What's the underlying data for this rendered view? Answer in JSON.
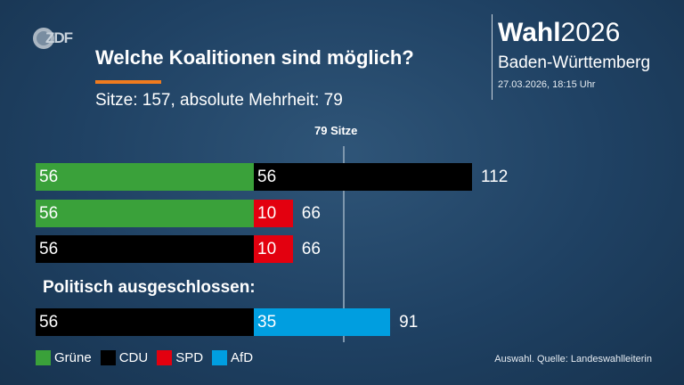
{
  "header": {
    "title": "Welche Koalitionen sind möglich?",
    "subtitle": "Sitze: 157, absolute Mehrheit: 79",
    "brand_bold": "Wahl",
    "brand_year": "2026",
    "region": "Baden-Württemberg",
    "timestamp": "27.03.2026, 18:15 Uhr",
    "logo_text": "ZDF",
    "accent_color": "#f07b1e"
  },
  "chart_data": {
    "type": "bar",
    "orientation": "horizontal",
    "stacked": true,
    "majority_label": "79 Sitze",
    "majority_value": 79,
    "xlim": [
      0,
      160
    ],
    "section_label": "Politisch ausgeschlossen:",
    "rows": [
      {
        "segments": [
          {
            "party": "Grüne",
            "value": 56
          },
          {
            "party": "CDU",
            "value": 56
          }
        ],
        "total": 112
      },
      {
        "segments": [
          {
            "party": "Grüne",
            "value": 56
          },
          {
            "party": "SPD",
            "value": 10
          }
        ],
        "total": 66
      },
      {
        "segments": [
          {
            "party": "CDU",
            "value": 56
          },
          {
            "party": "SPD",
            "value": 10
          }
        ],
        "total": 66
      },
      {
        "segments": [
          {
            "party": "CDU",
            "value": 56
          },
          {
            "party": "AfD",
            "value": 35
          }
        ],
        "total": 91
      }
    ],
    "legend": [
      {
        "party": "Grüne",
        "color": "#3aa13a"
      },
      {
        "party": "CDU",
        "color": "#000000"
      },
      {
        "party": "SPD",
        "color": "#e3000f"
      },
      {
        "party": "AfD",
        "color": "#009ee0"
      }
    ]
  },
  "footer": {
    "source": "Auswahl. Quelle: Landeswahlleiterin"
  }
}
